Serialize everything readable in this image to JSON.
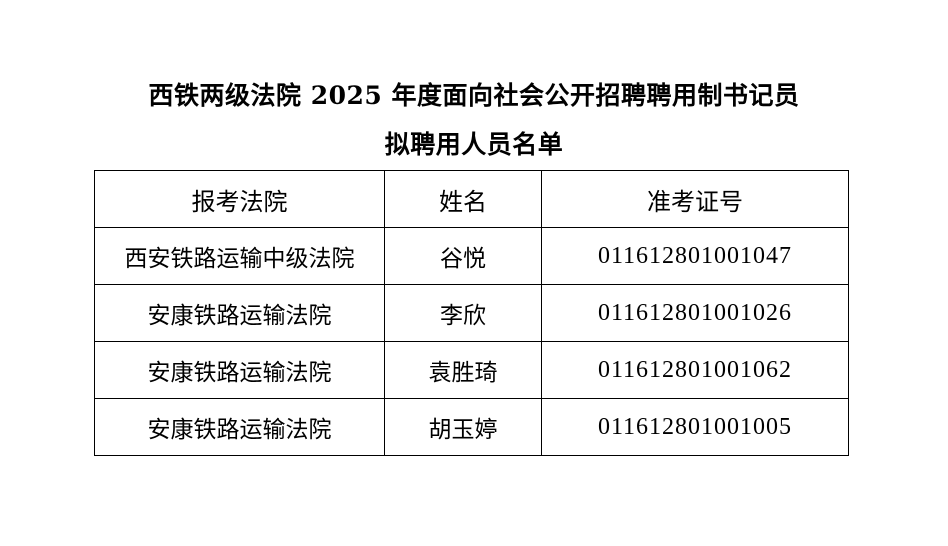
{
  "document": {
    "title_line1": "西铁两级法院 2025 年度面向社会公开招聘聘用制书记员",
    "title_line2": "拟聘用人员名单",
    "table": {
      "headers": [
        "报考法院",
        "姓名",
        "准考证号"
      ],
      "rows": [
        [
          "西安铁路运输中级法院",
          "谷悦",
          "011612801001047"
        ],
        [
          "安康铁路运输法院",
          "李欣",
          "011612801001026"
        ],
        [
          "安康铁路运输法院",
          "袁胜琦",
          "011612801001062"
        ],
        [
          "安康铁路运输法院",
          "胡玉婷",
          "011612801001005"
        ]
      ]
    }
  }
}
